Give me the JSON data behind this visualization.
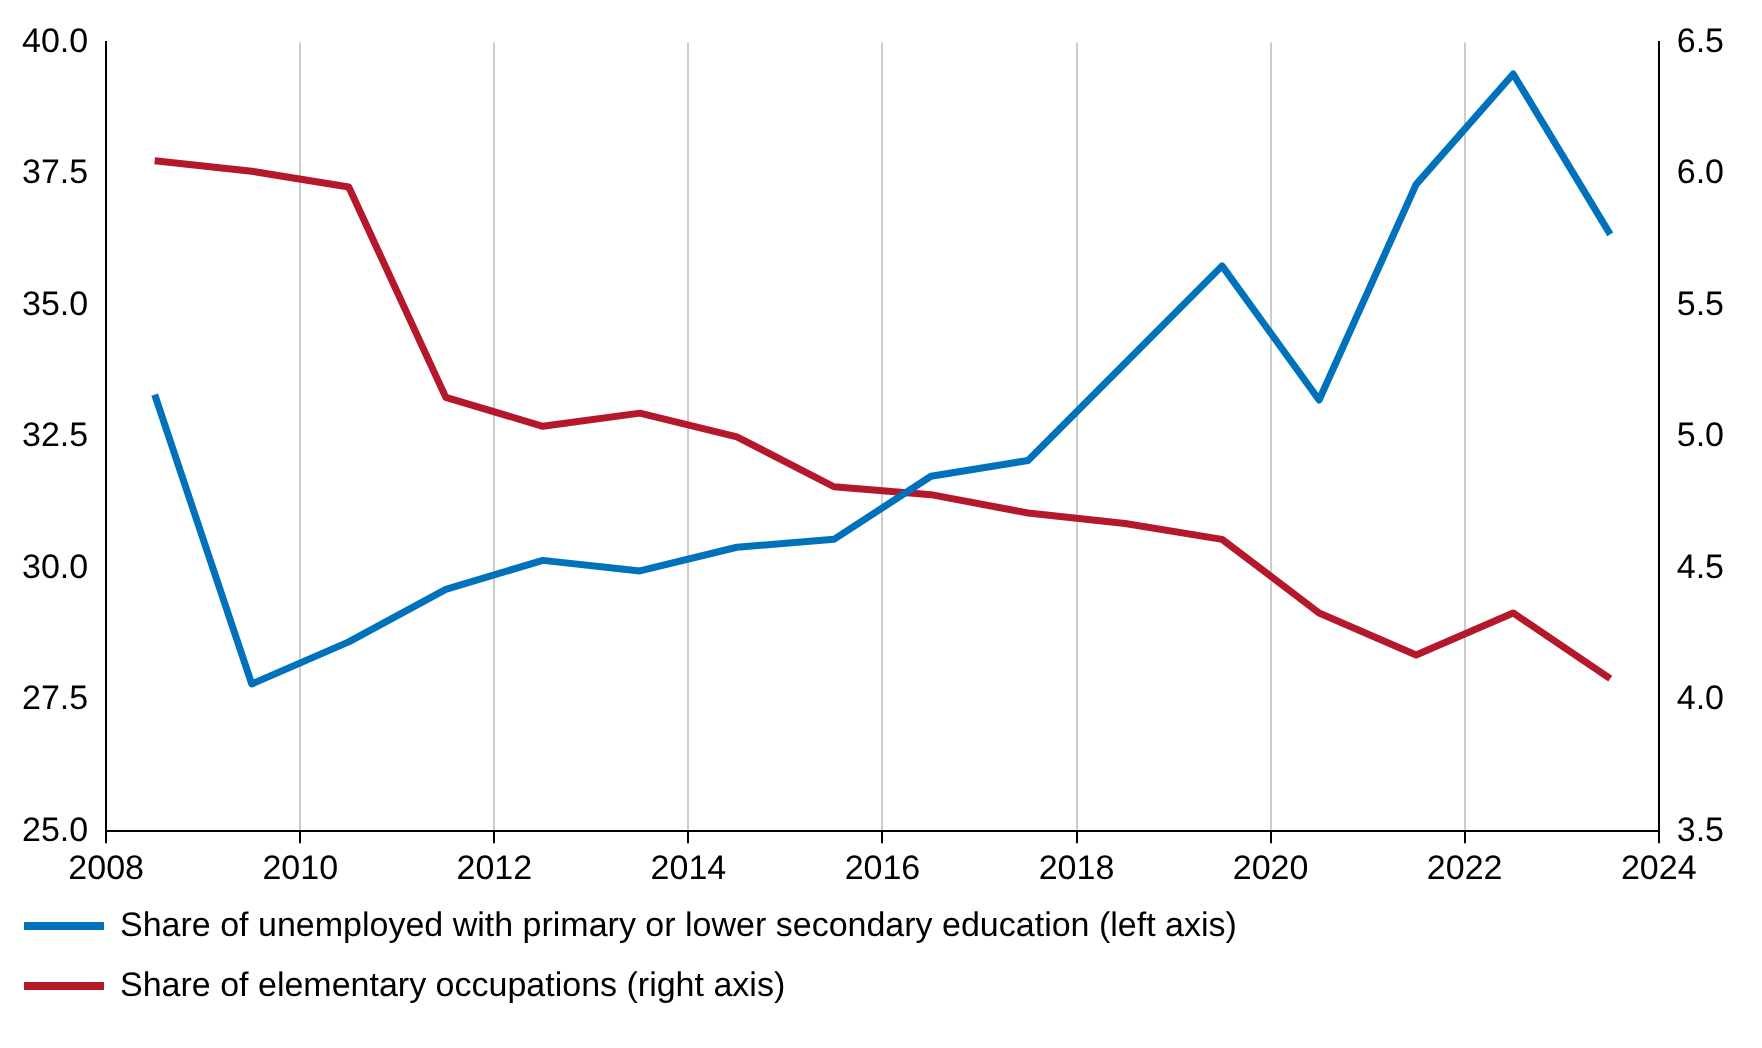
{
  "chart_data": {
    "type": "line",
    "x": [
      2008.5,
      2009.5,
      2010.5,
      2011.5,
      2012.5,
      2013.5,
      2014.5,
      2015.5,
      2016.5,
      2017.5,
      2018.5,
      2019.5,
      2020.5,
      2021.5,
      2022.5,
      2023.5
    ],
    "series": [
      {
        "name": "Share of unemployed with primary or lower secondary education (left axis)",
        "color": "#0072bc",
        "values": [
          33.3,
          27.8,
          28.6,
          29.6,
          30.15,
          29.95,
          30.4,
          30.55,
          31.75,
          32.05,
          33.9,
          35.75,
          33.2,
          37.3,
          39.4,
          36.35
        ]
      },
      {
        "name": "Share of elementary occupations (right axis)",
        "color": "#b5172b",
        "axis": "y2",
        "values": [
          6.05,
          6.01,
          5.95,
          5.15,
          5.04,
          5.09,
          5.0,
          4.81,
          4.78,
          4.71,
          4.67,
          4.61,
          4.33,
          4.17,
          4.33,
          4.08
        ]
      }
    ],
    "xlim": [
      2008,
      2024
    ],
    "xticks": [
      2008,
      2010,
      2012,
      2014,
      2016,
      2018,
      2020,
      2022,
      2024
    ],
    "ylim": [
      25,
      40
    ],
    "yticks": [
      {
        "value": 25,
        "label": "25.0"
      },
      {
        "value": 27.5,
        "label": "27.5"
      },
      {
        "value": 30,
        "label": "30.0"
      },
      {
        "value": 32.5,
        "label": "32.5"
      },
      {
        "value": 35,
        "label": "35.0"
      },
      {
        "value": 37.5,
        "label": "37.5"
      },
      {
        "value": 40,
        "label": "40.0"
      }
    ],
    "y2lim": [
      3.5,
      6.5
    ],
    "y2ticks": [
      {
        "value": 3.5,
        "label": "3.5"
      },
      {
        "value": 4,
        "label": "4.0"
      },
      {
        "value": 4.5,
        "label": "4.5"
      },
      {
        "value": 5,
        "label": "5.0"
      },
      {
        "value": 5.5,
        "label": "5.5"
      },
      {
        "value": 6,
        "label": "6.0"
      },
      {
        "value": 6.5,
        "label": "6.5"
      }
    ],
    "grid": "x",
    "legend": "bottom",
    "marker": "none",
    "line_style": "solid"
  }
}
